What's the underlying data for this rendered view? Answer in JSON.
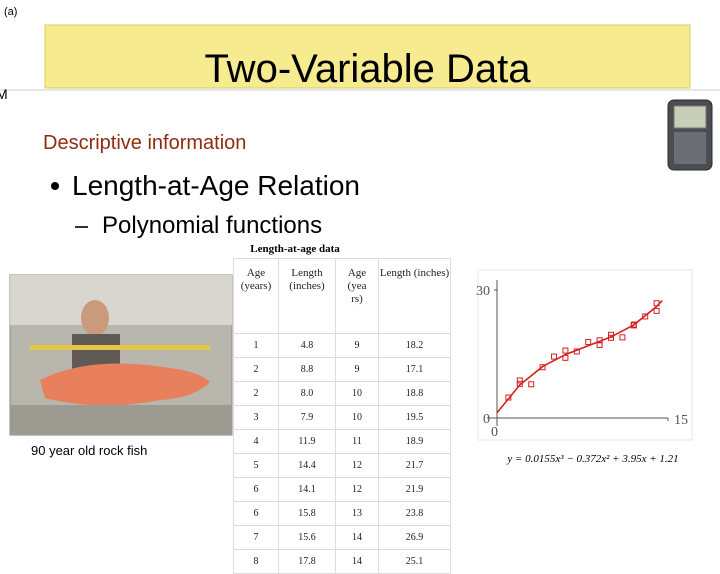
{
  "slide_label": "(a)",
  "edge_letter": "M",
  "title": "Two-Variable Data",
  "subtitle": "Descriptive information",
  "bullet": "Length-at-Age Relation",
  "sub_bullet": "Polynomial functions",
  "photo_caption": "90 year old rock fish",
  "table": {
    "caption": "Length-at-age data",
    "headers": [
      "Age (years)",
      "Length (inches)",
      "Age (years)",
      "Length (inches)"
    ],
    "rows": [
      [
        "1",
        "4.8",
        "9",
        "18.2"
      ],
      [
        "2",
        "8.8",
        "9",
        "17.1"
      ],
      [
        "2",
        "8.0",
        "10",
        "18.8"
      ],
      [
        "3",
        "7.9",
        "10",
        "19.5"
      ],
      [
        "4",
        "11.9",
        "11",
        "18.9"
      ],
      [
        "5",
        "14.4",
        "12",
        "21.7"
      ],
      [
        "6",
        "14.1",
        "12",
        "21.9"
      ],
      [
        "6",
        "15.8",
        "13",
        "23.8"
      ],
      [
        "7",
        "15.6",
        "14",
        "26.9"
      ],
      [
        "8",
        "17.8",
        "14",
        "25.1"
      ]
    ]
  },
  "plot": {
    "xlim": [
      0,
      15
    ],
    "ylim": [
      0,
      30
    ],
    "xticks": [
      0,
      15
    ],
    "yticks": [
      0,
      30
    ],
    "equation": "y = 0.0155x³ − 0.372x² + 3.95x + 1.21"
  }
}
